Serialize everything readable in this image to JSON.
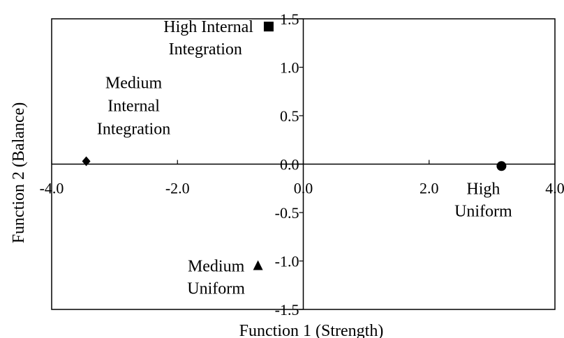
{
  "chart_data": {
    "type": "scatter",
    "title": "",
    "xlabel": "Function 1 (Strength)",
    "ylabel": "Function 2 (Balance)",
    "xlim": [
      -4.0,
      4.0
    ],
    "ylim": [
      -1.5,
      1.5
    ],
    "x_ticks": [
      "-4.0",
      "-2.0",
      "0.0",
      "2.0",
      "4.0"
    ],
    "y_ticks": [
      "1.5",
      "1.0",
      "0.5",
      "0.0",
      "-0.5",
      "-1.0",
      "-1.5"
    ],
    "x_tick_values": [
      -4.0,
      -2.0,
      0.0,
      2.0,
      4.0
    ],
    "y_tick_values": [
      1.5,
      1.0,
      0.5,
      0.0,
      -0.5,
      -1.0,
      -1.5
    ],
    "grid": false,
    "legend": "none",
    "points": [
      {
        "label_lines": [
          "High Internal",
          "Integration"
        ],
        "x": -0.55,
        "y": 1.42,
        "marker": "square"
      },
      {
        "label_lines": [
          "Medium",
          "Internal",
          "Integration"
        ],
        "x": -3.45,
        "y": 0.03,
        "marker": "diamond"
      },
      {
        "label_lines": [
          "High",
          "Uniform"
        ],
        "x": 3.15,
        "y": -0.02,
        "marker": "circle"
      },
      {
        "label_lines": [
          "Medium",
          "Uniform"
        ],
        "x": -0.72,
        "y": -1.05,
        "marker": "triangle"
      }
    ]
  }
}
